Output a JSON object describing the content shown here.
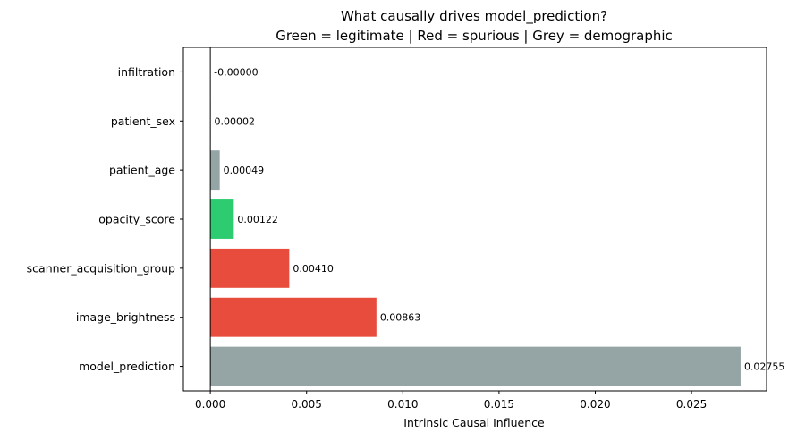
{
  "chart_data": {
    "type": "bar",
    "orientation": "horizontal",
    "title": "What causally drives model_prediction?",
    "subtitle": "Green = legitimate | Red = spurious | Grey = demographic",
    "xlabel": "Intrinsic Causal Influence",
    "ylabel": "",
    "xlim": [
      -0.0014,
      0.0289
    ],
    "xticks": [
      0.0,
      0.005,
      0.01,
      0.015,
      0.02,
      0.025
    ],
    "xtick_labels": [
      "0.000",
      "0.005",
      "0.010",
      "0.015",
      "0.020",
      "0.025"
    ],
    "grid": false,
    "categories": [
      "infiltration",
      "patient_sex",
      "patient_age",
      "opacity_score",
      "scanner_acquisition_group",
      "image_brightness",
      "model_prediction"
    ],
    "values": [
      -0.0,
      2e-05,
      0.00049,
      0.00122,
      0.0041,
      0.00863,
      0.02755
    ],
    "value_labels": [
      "-0.00000",
      "0.00002",
      "0.00049",
      "0.00122",
      "0.00410",
      "0.00863",
      "0.02755"
    ],
    "bar_colors": [
      "#95a5a6",
      "#95a5a6",
      "#95a5a6",
      "#2ecc71",
      "#e74c3c",
      "#e74c3c",
      "#95a5a6"
    ],
    "zero_line": true
  }
}
